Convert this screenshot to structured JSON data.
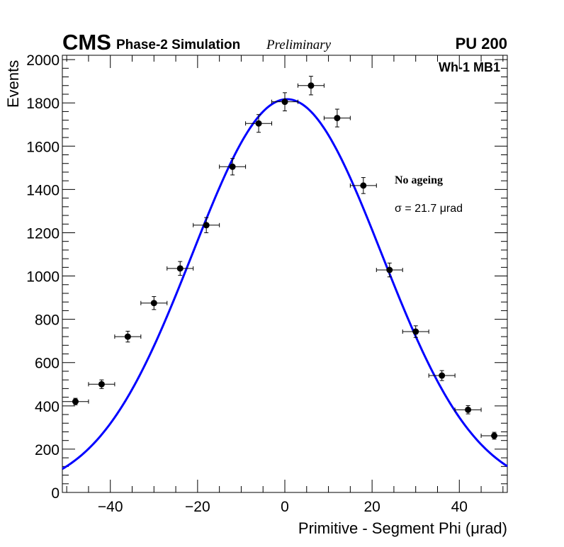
{
  "chart_data": {
    "type": "scatter",
    "title": "",
    "xlabel": "Primitive - Segment Phi (μrad)",
    "ylabel": "Events",
    "xlim": [
      -51,
      51
    ],
    "ylim": [
      0,
      2020
    ],
    "x_ticks": [
      -40,
      -20,
      0,
      20,
      40
    ],
    "x_tick_labels": [
      "−40",
      "−20",
      "0",
      "20",
      "40"
    ],
    "y_ticks": [
      0,
      200,
      400,
      600,
      800,
      1000,
      1200,
      1400,
      1600,
      1800,
      2000
    ],
    "y_tick_labels": [
      "0",
      "200",
      "400",
      "600",
      "800",
      "1000",
      "1200",
      "1400",
      "1600",
      "1800",
      "2000"
    ],
    "grid": false,
    "bin_half_width": 3,
    "series": [
      {
        "name": "Data",
        "x": [
          -48,
          -42,
          -36,
          -30,
          -24,
          -18,
          -12,
          -6,
          0,
          6,
          12,
          18,
          24,
          30,
          36,
          42,
          48
        ],
        "values": [
          420,
          500,
          720,
          875,
          1035,
          1235,
          1505,
          1705,
          1805,
          1880,
          1730,
          1418,
          1028,
          743,
          540,
          382,
          262
        ],
        "errors": [
          15,
          20,
          25,
          30,
          32,
          35,
          38,
          41,
          42,
          43,
          41,
          37,
          32,
          27,
          23,
          19,
          16
        ],
        "color": "#000000"
      },
      {
        "name": "Gaussian fit",
        "type": "line",
        "amplitude": 1817,
        "mean": 0.5,
        "sigma": 21.7,
        "color": "#0000ff"
      }
    ]
  },
  "labels": {
    "cms": "CMS",
    "phase2": "Phase-2 Simulation",
    "preliminary": "Preliminary",
    "pileup": "PU 200",
    "region": "Wh-1 MB1",
    "ageing": "No ageing",
    "sigma_text": "σ = 21.7  μrad"
  }
}
